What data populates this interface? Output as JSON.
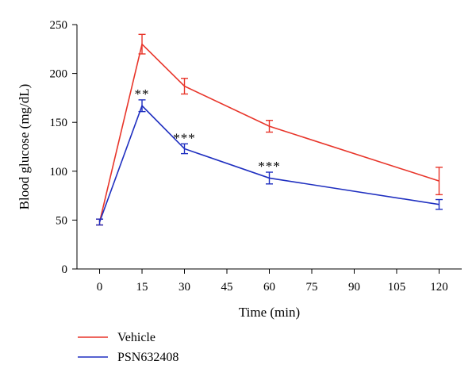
{
  "chart_data": {
    "type": "line",
    "title": "",
    "xlabel": "Time (min)",
    "ylabel": "Blood glucose (mg/dL)",
    "x": [
      0,
      15,
      30,
      60,
      120
    ],
    "xticks": [
      0,
      15,
      30,
      45,
      60,
      75,
      90,
      105,
      120
    ],
    "yticks": [
      0,
      50,
      100,
      150,
      200,
      250
    ],
    "xlim": [
      -8,
      128
    ],
    "ylim": [
      0,
      250
    ],
    "grid": false,
    "legend_position": "bottom-left",
    "series": [
      {
        "name": "Vehicle",
        "color": "#e8352a",
        "values": [
          48,
          230,
          187,
          146,
          90
        ],
        "errors": [
          3,
          10,
          8,
          6,
          14
        ]
      },
      {
        "name": "PSN632408",
        "color": "#1f2fc0",
        "values": [
          48,
          167,
          123,
          93,
          66
        ],
        "errors": [
          3,
          6,
          5,
          6,
          5
        ]
      }
    ],
    "annotations": [
      {
        "x": 15,
        "y": 167,
        "text": "**"
      },
      {
        "x": 30,
        "y": 123,
        "text": "***"
      },
      {
        "x": 60,
        "y": 93,
        "text": "***"
      }
    ]
  }
}
